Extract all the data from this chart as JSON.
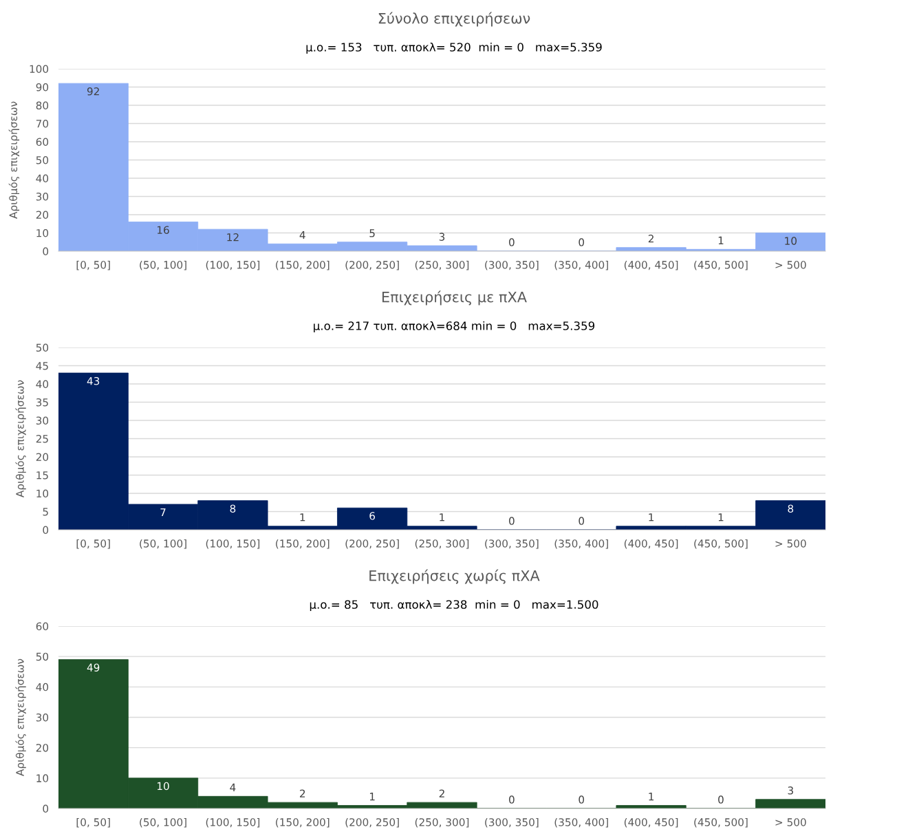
{
  "chart_data": [
    {
      "type": "bar",
      "title": "Σύνολο επιχειρήσεων",
      "subtitle": "μ.ο.= 153   τυπ. αποκλ= 520  min = 0   max=5.359",
      "ylabel": "Αριθμός επιχειρήσεων",
      "categories": [
        "[0, 50]",
        "(50, 100]",
        "(100, 150]",
        "(150, 200]",
        "(200, 250]",
        "(250, 300]",
        "(300, 350]",
        "(350, 400]",
        "(400, 450]",
        "(450, 500]",
        "> 500"
      ],
      "values": [
        92,
        16,
        12,
        4,
        5,
        3,
        0,
        0,
        2,
        1,
        10
      ],
      "color": "#8eaef5",
      "ylim": [
        0,
        100
      ],
      "yticks": [
        0,
        10,
        20,
        30,
        40,
        50,
        60,
        70,
        80,
        90,
        100
      ],
      "grid": "y",
      "data_labels": true,
      "legend": false
    },
    {
      "type": "bar",
      "title": "Επιχειρήσεις με πΧΑ",
      "subtitle": "μ.ο.= 217 τυπ. αποκλ=684 min = 0   max=5.359",
      "ylabel": "Αριθμός επιχειρήσεων",
      "categories": [
        "[0, 50]",
        "(50, 100]",
        "(100, 150]",
        "(150, 200]",
        "(200, 250]",
        "(250, 300]",
        "(300, 350]",
        "(350, 400]",
        "(400, 450]",
        "(450, 500]",
        "> 500"
      ],
      "values": [
        43,
        7,
        8,
        1,
        6,
        1,
        0,
        0,
        1,
        1,
        8
      ],
      "color": "#002060",
      "ylim": [
        0,
        50
      ],
      "yticks": [
        0,
        5,
        10,
        15,
        20,
        25,
        30,
        35,
        40,
        45,
        50
      ],
      "grid": "y",
      "data_labels": true,
      "legend": false
    },
    {
      "type": "bar",
      "title": "Επιχειρήσεις χωρίς πΧΑ",
      "subtitle": "μ.ο.= 85   τυπ. αποκλ= 238  min = 0   max=1.500",
      "ylabel": "Αριθμός επιχειρήσεων",
      "categories": [
        "[0, 50]",
        "(50, 100]",
        "(100, 150]",
        "(150, 200]",
        "(200, 250]",
        "(250, 300]",
        "(300, 350]",
        "(350, 400]",
        "(400, 450]",
        "(450, 500]",
        "> 500"
      ],
      "values": [
        49,
        10,
        4,
        2,
        1,
        2,
        0,
        0,
        1,
        0,
        3
      ],
      "color": "#1e5128",
      "ylim": [
        0,
        60
      ],
      "yticks": [
        0,
        10,
        20,
        30,
        40,
        50,
        60
      ],
      "grid": "y",
      "data_labels": true,
      "legend": false
    }
  ]
}
